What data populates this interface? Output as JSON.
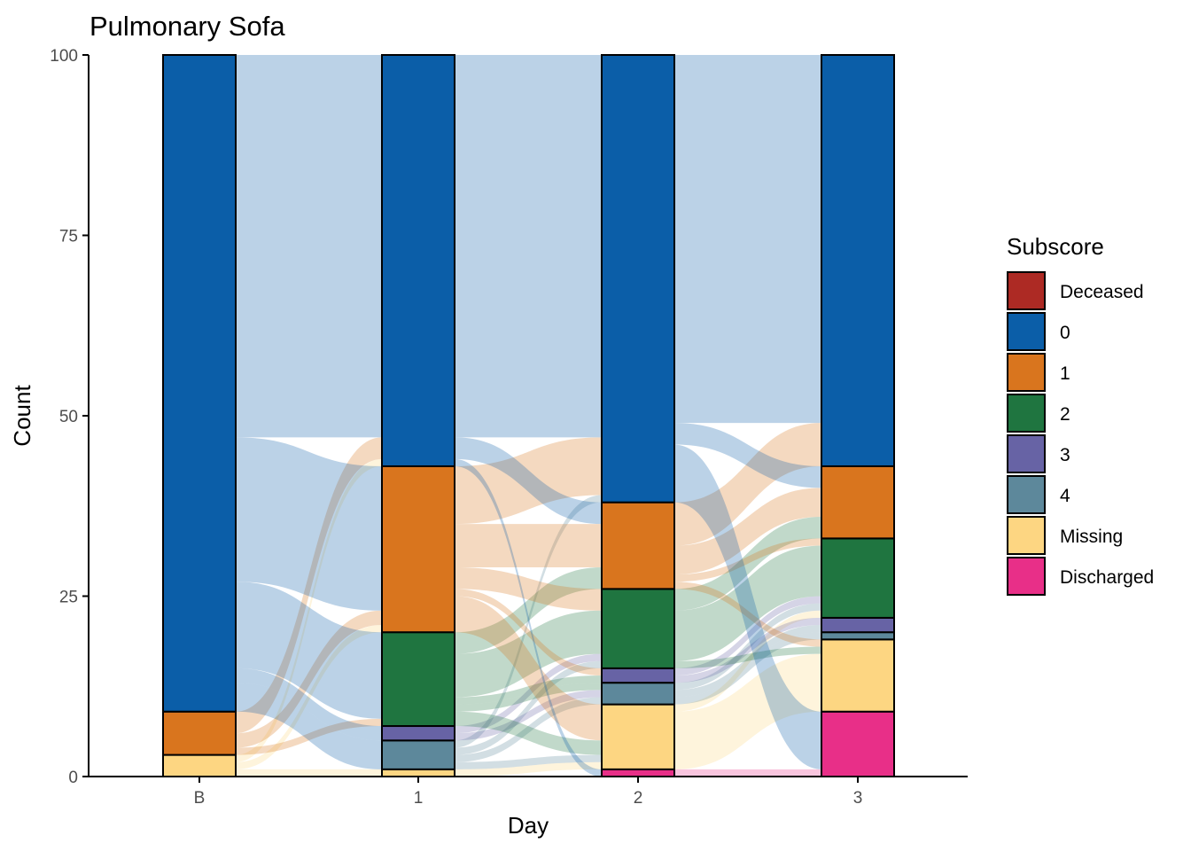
{
  "chart_data": {
    "type": "alluvial",
    "title": "Pulmonary Sofa",
    "xlabel": "Day",
    "ylabel": "Count",
    "ylim": [
      0,
      100
    ],
    "y_ticks": [
      0,
      25,
      50,
      75,
      100
    ],
    "grid": false,
    "legend_position": "right",
    "x_categories": [
      "B",
      "1",
      "2",
      "3"
    ],
    "legend": {
      "title": "Subscore",
      "items": [
        {
          "key": "Deceased",
          "label": "Deceased",
          "color": "#AD2A24"
        },
        {
          "key": "0",
          "label": "0",
          "color": "#0B5EA8"
        },
        {
          "key": "1",
          "label": "1",
          "color": "#D9751E"
        },
        {
          "key": "2",
          "label": "2",
          "color": "#1F7540"
        },
        {
          "key": "3",
          "label": "3",
          "color": "#6763A5"
        },
        {
          "key": "4",
          "label": "4",
          "color": "#5D889B"
        },
        {
          "key": "Missing",
          "label": "Missing",
          "color": "#FDD682"
        },
        {
          "key": "Discharged",
          "label": "Discharged",
          "color": "#E82F88"
        }
      ]
    },
    "stack_order_bottom_to_top": [
      "Discharged",
      "Deceased",
      "Missing",
      "4",
      "3",
      "2",
      "1",
      "0"
    ],
    "strata": [
      {
        "day": "B",
        "counts": {
          "Discharged": 0,
          "Deceased": 0,
          "Missing": 3,
          "4": 0,
          "3": 0,
          "2": 0,
          "1": 6,
          "0": 91
        }
      },
      {
        "day": "1",
        "counts": {
          "Discharged": 0,
          "Deceased": 0,
          "Missing": 1,
          "4": 4,
          "3": 2,
          "2": 13,
          "1": 23,
          "0": 57
        }
      },
      {
        "day": "2",
        "counts": {
          "Discharged": 1,
          "Deceased": 0,
          "Missing": 9,
          "4": 3,
          "3": 2,
          "2": 11,
          "1": 12,
          "0": 62
        }
      },
      {
        "day": "3",
        "counts": {
          "Discharged": 9,
          "Deceased": 0,
          "Missing": 10,
          "4": 1,
          "3": 2,
          "2": 11,
          "1": 10,
          "0": 57
        }
      }
    ],
    "flows": [
      {
        "from_day": "B",
        "to_day": "1",
        "links": [
          [
            "Missing",
            "Missing",
            1
          ],
          [
            "Missing",
            "1",
            1
          ],
          [
            "Missing",
            "0",
            1
          ],
          [
            "1",
            "2",
            1
          ],
          [
            "1",
            "1",
            2
          ],
          [
            "1",
            "0",
            3
          ],
          [
            "0",
            "4",
            4
          ],
          [
            "0",
            "3",
            2
          ],
          [
            "0",
            "2",
            12
          ],
          [
            "0",
            "1",
            20
          ],
          [
            "0",
            "0",
            53
          ]
        ]
      },
      {
        "from_day": "1",
        "to_day": "2",
        "links": [
          [
            "Missing",
            "Missing",
            1
          ],
          [
            "4",
            "Missing",
            1
          ],
          [
            "4",
            "4",
            1
          ],
          [
            "4",
            "2",
            1
          ],
          [
            "4",
            "0",
            1
          ],
          [
            "3",
            "4",
            1
          ],
          [
            "3",
            "2",
            1
          ],
          [
            "2",
            "Missing",
            2
          ],
          [
            "2",
            "4",
            1
          ],
          [
            "2",
            "3",
            1
          ],
          [
            "2",
            "2",
            6
          ],
          [
            "2",
            "1",
            3
          ],
          [
            "1",
            "Missing",
            5
          ],
          [
            "1",
            "3",
            1
          ],
          [
            "1",
            "2",
            3
          ],
          [
            "1",
            "1",
            6
          ],
          [
            "1",
            "0",
            8
          ],
          [
            "0",
            "Discharged",
            1
          ],
          [
            "0",
            "1",
            3
          ],
          [
            "0",
            "0",
            53
          ]
        ]
      },
      {
        "from_day": "2",
        "to_day": "3",
        "links": [
          [
            "Discharged",
            "Discharged",
            1
          ],
          [
            "Missing",
            "Missing",
            8
          ],
          [
            "Missing",
            "2",
            1
          ],
          [
            "4",
            "4",
            1
          ],
          [
            "4",
            "3",
            1
          ],
          [
            "4",
            "2",
            1
          ],
          [
            "3",
            "3",
            1
          ],
          [
            "3",
            "2",
            1
          ],
          [
            "2",
            "Missing",
            1
          ],
          [
            "2",
            "2",
            7
          ],
          [
            "2",
            "1",
            3
          ],
          [
            "1",
            "Missing",
            1
          ],
          [
            "1",
            "2",
            1
          ],
          [
            "1",
            "1",
            4
          ],
          [
            "1",
            "0",
            6
          ],
          [
            "0",
            "Discharged",
            8
          ],
          [
            "0",
            "1",
            3
          ],
          [
            "0",
            "0",
            51
          ]
        ]
      }
    ]
  }
}
